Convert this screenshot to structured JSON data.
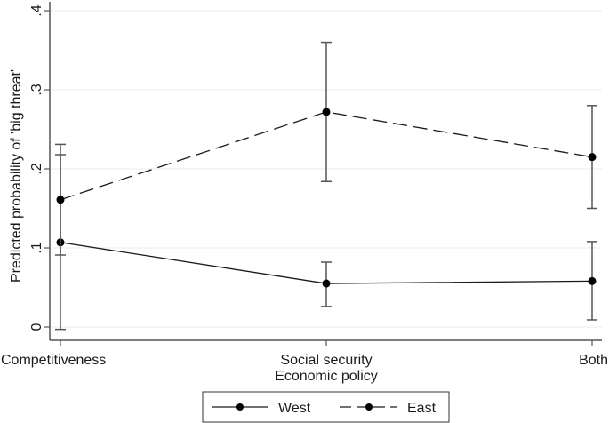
{
  "chart_data": {
    "type": "line",
    "title": "",
    "xlabel": "Economic policy",
    "ylabel": "Predicted probability of 'big threat'",
    "categories": [
      "Competitiveness",
      "Social security",
      "Both"
    ],
    "ylim": [
      0,
      0.4
    ],
    "yticks": [
      0,
      0.1,
      0.2,
      0.3,
      0.4
    ],
    "ytick_labels": [
      "0",
      ".1",
      ".2",
      ".3",
      ".4"
    ],
    "grid": true,
    "legend_position": "bottom",
    "error_bars": true,
    "series": [
      {
        "name": "West",
        "line_style": "solid",
        "values": [
          0.107,
          0.055,
          0.058
        ],
        "ci_lower": [
          -0.003,
          0.026,
          0.009
        ],
        "ci_upper": [
          0.218,
          0.082,
          0.108
        ]
      },
      {
        "name": "East",
        "line_style": "dashed",
        "values": [
          0.161,
          0.272,
          0.215
        ],
        "ci_lower": [
          0.091,
          0.184,
          0.15
        ],
        "ci_upper": [
          0.231,
          0.36,
          0.28
        ]
      }
    ]
  },
  "colors": {
    "line": "#1a1a1a",
    "errorbar": "#555555",
    "grid": "#e4eef2",
    "axis": "#555555"
  }
}
